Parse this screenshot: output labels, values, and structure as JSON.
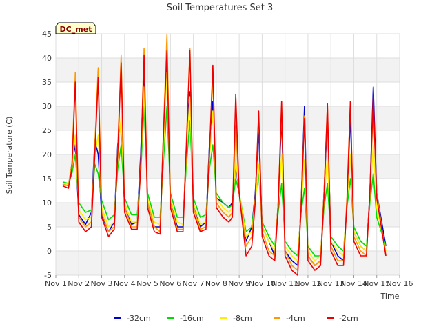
{
  "chart_data": {
    "type": "line",
    "title": "Soil Temperatures Set 3",
    "xlabel": "Time",
    "ylabel": "Soil Temperature (C)",
    "badge": "DC_met",
    "xlim": [
      1,
      16
    ],
    "ylim": [
      -5,
      45
    ],
    "xticks": [
      {
        "value": 1,
        "label": "Nov 1"
      },
      {
        "value": 2,
        "label": "Nov 2"
      },
      {
        "value": 3,
        "label": "Nov 3"
      },
      {
        "value": 4,
        "label": "Nov 4"
      },
      {
        "value": 5,
        "label": "Nov 5"
      },
      {
        "value": 6,
        "label": "Nov 6"
      },
      {
        "value": 7,
        "label": "Nov 7"
      },
      {
        "value": 8,
        "label": "Nov 8"
      },
      {
        "value": 9,
        "label": "Nov 9"
      },
      {
        "value": 10,
        "label": "Nov 10"
      },
      {
        "value": 11,
        "label": "Nov 11"
      },
      {
        "value": 12,
        "label": "Nov 12"
      },
      {
        "value": 13,
        "label": "Nov 13"
      },
      {
        "value": 14,
        "label": "Nov 14"
      },
      {
        "value": 15,
        "label": "Nov 15"
      },
      {
        "value": 16,
        "label": "Nov 16"
      }
    ],
    "yticks": [
      -5,
      0,
      5,
      10,
      15,
      20,
      25,
      30,
      35,
      40,
      45
    ],
    "grid": true,
    "legend_position": "bottom",
    "series": [
      {
        "name": "-32cm",
        "color": "#0000cc",
        "x": [
          1.3,
          1.55,
          1.7,
          1.85,
          2.0,
          2.3,
          2.55,
          2.7,
          2.85,
          3.0,
          3.3,
          3.55,
          3.7,
          3.85,
          4.0,
          4.3,
          4.55,
          4.7,
          4.85,
          5.0,
          5.3,
          5.55,
          5.7,
          5.85,
          6.0,
          6.3,
          6.55,
          6.7,
          6.85,
          7.0,
          7.3,
          7.55,
          7.7,
          7.85,
          8.0,
          8.3,
          8.55,
          8.7,
          8.85,
          9.0,
          9.3,
          9.55,
          9.7,
          9.85,
          10.0,
          10.3,
          10.55,
          10.7,
          10.85,
          11.0,
          11.3,
          11.55,
          11.7,
          11.85,
          12.0,
          12.3,
          12.55,
          12.7,
          12.85,
          13.0,
          13.3,
          13.55,
          13.7,
          13.85,
          14.0,
          14.3,
          14.55,
          14.7,
          14.85,
          15.0,
          15.4
        ],
        "y": [
          13.8,
          13.5,
          18,
          22,
          7.5,
          5.5,
          8,
          23,
          20,
          7.5,
          4,
          6,
          22,
          27,
          9,
          5.5,
          6,
          20,
          38,
          10,
          5,
          5,
          25,
          41,
          10,
          5,
          5,
          22,
          33,
          10,
          5,
          6,
          22,
          31,
          11,
          10,
          9,
          10,
          18,
          12,
          2,
          5,
          12,
          25,
          5,
          2,
          -1,
          10,
          28,
          0,
          -2,
          -3,
          10,
          30,
          -1,
          -3,
          -2,
          12,
          28,
          2,
          -1,
          -2,
          10,
          28,
          4,
          1,
          0,
          12,
          34,
          12,
          1
        ]
      },
      {
        "name": "-16cm",
        "color": "#00dd00",
        "x": [
          1.3,
          1.55,
          1.7,
          1.85,
          2.0,
          2.3,
          2.55,
          2.7,
          2.85,
          3.0,
          3.3,
          3.55,
          3.7,
          3.85,
          4.0,
          4.3,
          4.55,
          4.7,
          4.85,
          5.0,
          5.3,
          5.55,
          5.7,
          5.85,
          6.0,
          6.3,
          6.55,
          6.7,
          6.85,
          7.0,
          7.3,
          7.55,
          7.7,
          7.85,
          8.0,
          8.3,
          8.55,
          8.7,
          8.85,
          9.0,
          9.3,
          9.55,
          9.7,
          9.85,
          10.0,
          10.3,
          10.55,
          10.7,
          10.85,
          11.0,
          11.3,
          11.55,
          11.7,
          11.85,
          12.0,
          12.3,
          12.55,
          12.7,
          12.85,
          13.0,
          13.3,
          13.55,
          13.7,
          13.85,
          14.0,
          14.3,
          14.55,
          14.7,
          14.85,
          15.0,
          15.4
        ],
        "y": [
          14.3,
          14,
          16,
          20,
          10,
          8,
          8.5,
          18,
          16,
          10.5,
          6.5,
          7.5,
          17,
          22,
          11,
          7.5,
          7.5,
          16,
          30,
          12,
          7,
          7,
          19,
          30,
          12,
          7,
          7,
          18,
          27,
          11,
          7,
          7.5,
          17,
          22,
          12,
          10,
          9,
          9.5,
          15,
          12,
          4,
          5,
          11,
          16,
          6,
          3,
          1,
          8,
          14,
          2,
          0,
          -1,
          8,
          13,
          1,
          -1,
          -1,
          9,
          14,
          3,
          1,
          0,
          9,
          15,
          5,
          2,
          1,
          10,
          16,
          7,
          1
        ]
      },
      {
        "name": "-8cm",
        "color": "#ffee00",
        "x": [
          1.3,
          1.55,
          1.7,
          1.85,
          2.0,
          2.3,
          2.55,
          2.7,
          2.85,
          3.0,
          3.3,
          3.55,
          3.7,
          3.85,
          4.0,
          4.3,
          4.55,
          4.7,
          4.85,
          5.0,
          5.3,
          5.55,
          5.7,
          5.85,
          6.0,
          6.3,
          6.55,
          6.7,
          6.85,
          7.0,
          7.3,
          7.55,
          7.7,
          7.85,
          8.0,
          8.3,
          8.55,
          8.7,
          8.85,
          9.0,
          9.3,
          9.55,
          9.7,
          9.85,
          10.0,
          10.3,
          10.55,
          10.7,
          10.85,
          11.0,
          11.3,
          11.55,
          11.7,
          11.85,
          12.0,
          12.3,
          12.55,
          12.7,
          12.85,
          13.0,
          13.3,
          13.55,
          13.7,
          13.85,
          14.0,
          14.3,
          14.55,
          14.7,
          14.85,
          15.0,
          15.4
        ],
        "y": [
          14,
          13.8,
          17,
          24,
          8.5,
          6.5,
          7,
          20,
          24,
          9,
          5,
          6,
          19,
          28,
          10,
          6,
          6,
          17,
          34,
          11,
          6,
          5.5,
          22,
          37,
          11,
          6,
          5.5,
          20,
          32,
          10,
          5.5,
          6,
          19,
          29,
          11,
          9,
          8,
          9,
          19,
          12,
          3,
          4,
          10,
          18,
          5,
          2,
          0,
          9,
          20,
          1,
          -1,
          -2,
          9,
          19,
          0,
          -2,
          -1,
          10,
          20,
          2,
          0,
          -1,
          10,
          20,
          4,
          1,
          0,
          11,
          22,
          9,
          0
        ]
      },
      {
        "name": "-4cm",
        "color": "#ff9900",
        "x": [
          1.3,
          1.55,
          1.7,
          1.85,
          2.0,
          2.3,
          2.55,
          2.7,
          2.85,
          3.0,
          3.3,
          3.55,
          3.7,
          3.85,
          4.0,
          4.3,
          4.55,
          4.7,
          4.85,
          5.0,
          5.3,
          5.55,
          5.7,
          5.85,
          6.0,
          6.3,
          6.55,
          6.7,
          6.85,
          7.0,
          7.3,
          7.55,
          7.7,
          7.85,
          8.0,
          8.3,
          8.55,
          8.7,
          8.85,
          9.0,
          9.3,
          9.55,
          9.7,
          9.85,
          10.0,
          10.3,
          10.55,
          10.7,
          10.85,
          11.0,
          11.3,
          11.55,
          11.7,
          11.85,
          12.0,
          12.3,
          12.55,
          12.7,
          12.85,
          13.0,
          13.3,
          13.55,
          13.7,
          13.85,
          14.0,
          14.3,
          14.55,
          14.7,
          14.85,
          15.0,
          15.4
        ],
        "y": [
          13.8,
          13.5,
          18,
          37,
          7,
          5,
          6,
          22,
          38,
          8,
          4,
          5,
          21,
          40.5,
          9,
          5,
          5,
          18,
          42,
          10,
          5,
          4,
          26,
          44.8,
          10,
          4.5,
          4.5,
          23,
          42,
          9,
          4.5,
          5,
          21,
          36,
          10,
          8,
          7,
          8,
          26,
          12,
          1,
          3,
          11,
          28,
          4,
          0,
          -1,
          10,
          30,
          0,
          -3,
          -4,
          10,
          28,
          -1,
          -3,
          -2,
          12,
          30,
          1,
          -2,
          -2,
          11,
          31,
          3,
          0,
          -1,
          12,
          30,
          12,
          -1
        ]
      },
      {
        "name": "-2cm",
        "color": "#ee0000",
        "x": [
          1.3,
          1.55,
          1.7,
          1.85,
          2.0,
          2.3,
          2.55,
          2.7,
          2.85,
          3.0,
          3.3,
          3.55,
          3.7,
          3.85,
          4.0,
          4.3,
          4.55,
          4.7,
          4.85,
          5.0,
          5.3,
          5.55,
          5.7,
          5.85,
          6.0,
          6.3,
          6.55,
          6.7,
          6.85,
          7.0,
          7.3,
          7.55,
          7.7,
          7.85,
          8.0,
          8.3,
          8.55,
          8.7,
          8.85,
          9.0,
          9.3,
          9.55,
          9.7,
          9.85,
          10.0,
          10.3,
          10.55,
          10.7,
          10.85,
          11.0,
          11.3,
          11.55,
          11.7,
          11.85,
          12.0,
          12.3,
          12.55,
          12.7,
          12.85,
          13.0,
          13.3,
          13.55,
          13.7,
          13.85,
          14.0,
          14.3,
          14.55,
          14.7,
          14.85,
          15.0,
          15.4
        ],
        "y": [
          13.5,
          13,
          17,
          35,
          6,
          4,
          5,
          20,
          36,
          7,
          3,
          4.5,
          20,
          39,
          8,
          4.5,
          4.5,
          17,
          40.5,
          9,
          4,
          3.5,
          25,
          41.5,
          9,
          4,
          4,
          22,
          41.5,
          8,
          4,
          4.5,
          20,
          38.5,
          9,
          7,
          6,
          7,
          32.5,
          12,
          -1,
          1,
          10,
          29,
          3,
          -1,
          -2,
          9,
          31,
          -1,
          -4,
          -5,
          9,
          27.5,
          -2,
          -4,
          -3,
          11,
          30.5,
          0,
          -3,
          -3,
          10,
          31,
          2,
          -1,
          -1,
          12,
          32,
          11,
          -1
        ]
      }
    ]
  }
}
